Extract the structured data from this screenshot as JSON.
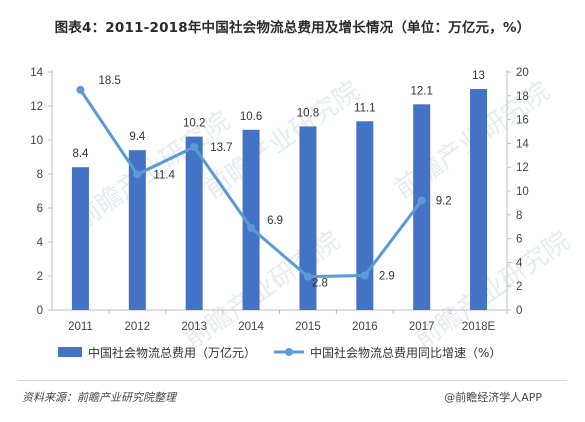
{
  "title": "图表4：2011-2018年中国社会物流总费用及增长情况（单位：万亿元，%）",
  "footer": {
    "source": "资料来源：前瞻产业研究院整理",
    "brand": "@前瞻经济学人APP"
  },
  "watermark": {
    "text": "前瞻产业研究院"
  },
  "chart_data": {
    "type": "bar",
    "categories": [
      "2011",
      "2012",
      "2013",
      "2014",
      "2015",
      "2016",
      "2017",
      "2018E"
    ],
    "ylim_left": [
      0,
      14
    ],
    "yticks_left": [
      0,
      2,
      4,
      6,
      8,
      10,
      12,
      14
    ],
    "ylim_right": [
      0,
      20
    ],
    "yticks_right": [
      0,
      2,
      4,
      6,
      8,
      10,
      12,
      14,
      16,
      18,
      20
    ],
    "grid": false,
    "legend_position": "bottom",
    "series": [
      {
        "name": "中国社会物流总费用（万亿元）",
        "type": "bar",
        "axis": "left",
        "color": "#4472C4",
        "values": [
          8.4,
          9.4,
          10.2,
          10.6,
          10.8,
          11.1,
          12.1,
          13
        ],
        "labels": [
          "8.4",
          "9.4",
          "10.2",
          "10.6",
          "10.8",
          "11.1",
          "12.1",
          "13"
        ]
      },
      {
        "name": "中国社会物流总费用同比增速（%）",
        "type": "line",
        "axis": "right",
        "color": "#5B9BD5",
        "values": [
          18.5,
          11.4,
          13.7,
          6.9,
          2.8,
          2.9,
          9.2,
          null
        ],
        "labels": [
          "18.5",
          "11.4",
          "13.7",
          "6.9",
          "2.8",
          "2.9",
          "9.2",
          ""
        ]
      }
    ]
  }
}
